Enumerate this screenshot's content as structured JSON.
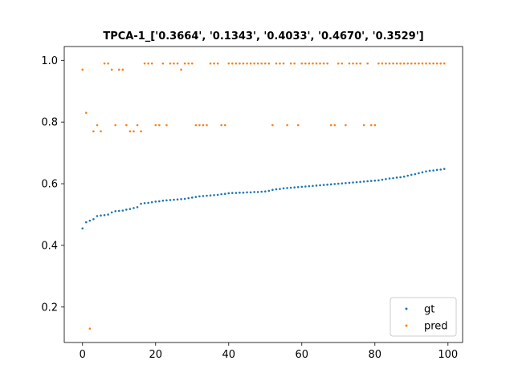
{
  "chart_data": {
    "type": "scatter",
    "title": "TPCA-1_['0.3664', '0.1343', '0.4033', '0.4670', '0.3529']",
    "xlabel": "",
    "ylabel": "",
    "xlim": [
      -5,
      104
    ],
    "ylim": [
      0.085,
      1.045
    ],
    "xticks": [
      0,
      20,
      40,
      60,
      80,
      100
    ],
    "yticks": [
      0.2,
      0.4,
      0.6,
      0.8,
      1.0
    ],
    "xtick_labels": [
      "0",
      "20",
      "40",
      "60",
      "80",
      "100"
    ],
    "ytick_labels": [
      "0.2",
      "0.4",
      "0.6",
      "0.8",
      "1.0"
    ],
    "grid": false,
    "legend_position": "bottom-right",
    "x": [
      0,
      1,
      2,
      3,
      4,
      5,
      6,
      7,
      8,
      9,
      10,
      11,
      12,
      13,
      14,
      15,
      16,
      17,
      18,
      19,
      20,
      21,
      22,
      23,
      24,
      25,
      26,
      27,
      28,
      29,
      30,
      31,
      32,
      33,
      34,
      35,
      36,
      37,
      38,
      39,
      40,
      41,
      42,
      43,
      44,
      45,
      46,
      47,
      48,
      49,
      50,
      51,
      52,
      53,
      54,
      55,
      56,
      57,
      58,
      59,
      60,
      61,
      62,
      63,
      64,
      65,
      66,
      67,
      68,
      69,
      70,
      71,
      72,
      73,
      74,
      75,
      76,
      77,
      78,
      79,
      80,
      81,
      82,
      83,
      84,
      85,
      86,
      87,
      88,
      89,
      90,
      91,
      92,
      93,
      94,
      95,
      96,
      97,
      98,
      99
    ],
    "series": [
      {
        "name": "gt",
        "color": "#1f77b4",
        "values": [
          0.455,
          0.475,
          0.48,
          0.485,
          0.495,
          0.497,
          0.498,
          0.5,
          0.507,
          0.511,
          0.512,
          0.513,
          0.516,
          0.518,
          0.521,
          0.524,
          0.535,
          0.537,
          0.538,
          0.54,
          0.542,
          0.543,
          0.545,
          0.546,
          0.547,
          0.548,
          0.549,
          0.55,
          0.551,
          0.553,
          0.555,
          0.557,
          0.559,
          0.56,
          0.561,
          0.562,
          0.563,
          0.564,
          0.566,
          0.567,
          0.569,
          0.57,
          0.57,
          0.571,
          0.571,
          0.572,
          0.572,
          0.573,
          0.573,
          0.574,
          0.575,
          0.577,
          0.58,
          0.582,
          0.583,
          0.585,
          0.586,
          0.587,
          0.588,
          0.589,
          0.59,
          0.591,
          0.592,
          0.593,
          0.594,
          0.595,
          0.596,
          0.597,
          0.598,
          0.599,
          0.6,
          0.601,
          0.602,
          0.603,
          0.604,
          0.605,
          0.606,
          0.607,
          0.608,
          0.609,
          0.61,
          0.611,
          0.613,
          0.615,
          0.617,
          0.618,
          0.62,
          0.621,
          0.623,
          0.626,
          0.629,
          0.631,
          0.634,
          0.637,
          0.64,
          0.642,
          0.643,
          0.645,
          0.646,
          0.648
        ]
      },
      {
        "name": "pred",
        "color": "#ff7f0e",
        "values": [
          0.97,
          0.83,
          0.13,
          0.77,
          0.79,
          0.77,
          0.99,
          0.99,
          0.97,
          0.79,
          0.97,
          0.97,
          0.79,
          0.77,
          0.77,
          0.79,
          0.77,
          0.99,
          0.99,
          0.99,
          0.79,
          0.79,
          0.99,
          0.79,
          0.99,
          0.99,
          0.99,
          0.97,
          0.99,
          0.99,
          0.99,
          0.79,
          0.79,
          0.79,
          0.79,
          0.99,
          0.99,
          0.99,
          0.79,
          0.79,
          0.99,
          0.99,
          0.99,
          0.99,
          0.99,
          0.99,
          0.99,
          0.99,
          0.99,
          0.99,
          0.99,
          0.99,
          0.79,
          0.99,
          0.99,
          0.99,
          0.79,
          0.99,
          0.99,
          0.79,
          0.99,
          0.99,
          0.99,
          0.99,
          0.99,
          0.99,
          0.99,
          0.99,
          0.79,
          0.79,
          0.99,
          0.99,
          0.79,
          0.99,
          0.99,
          0.99,
          0.99,
          0.79,
          0.99,
          0.79,
          0.79,
          0.99,
          0.99,
          0.99,
          0.99,
          0.99,
          0.99,
          0.99,
          0.99,
          0.99,
          0.99,
          0.99,
          0.99,
          0.99,
          0.99,
          0.99,
          0.99,
          0.99,
          0.99,
          0.99
        ]
      }
    ]
  }
}
